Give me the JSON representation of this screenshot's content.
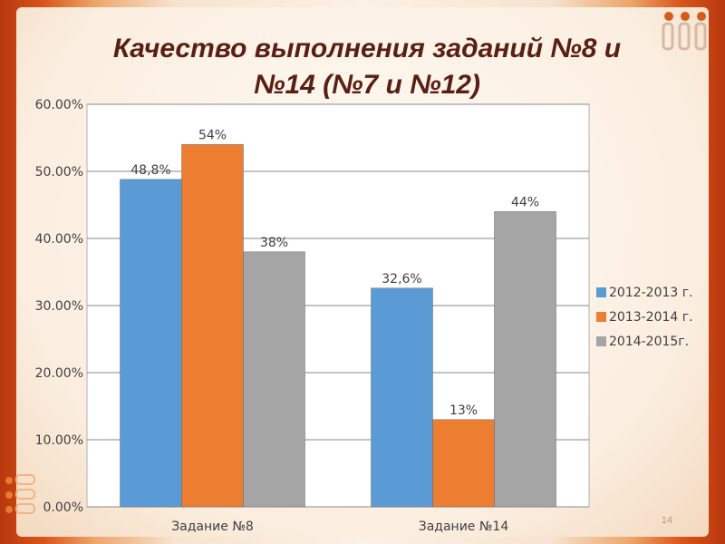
{
  "slide": {
    "title_line1": "Качество выполнения заданий №8 и",
    "title_line2": "№14 (№7 и №12)",
    "page_number": "14"
  },
  "colors": {
    "series": [
      "#5b9bd5",
      "#ed7d31",
      "#a5a5a5"
    ],
    "title": "#5a1f14"
  },
  "chart_data": {
    "type": "bar",
    "categories": [
      "Задание №8",
      "Задание №14"
    ],
    "series": [
      {
        "name": "2012-2013 г.",
        "values": [
          48.8,
          32.6
        ],
        "labels": [
          "48,8%",
          "32,6%"
        ]
      },
      {
        "name": "2013-2014 г.",
        "values": [
          54,
          13
        ],
        "labels": [
          "54%",
          "13%"
        ]
      },
      {
        "name": "2014-2015г.",
        "values": [
          38,
          44
        ],
        "labels": [
          "38%",
          "44%"
        ]
      }
    ],
    "yticks": [
      "0.00%",
      "10.00%",
      "20.00%",
      "30.00%",
      "40.00%",
      "50.00%",
      "60.00%"
    ],
    "ylim": [
      0,
      60
    ],
    "grid": true,
    "legend": "right"
  }
}
